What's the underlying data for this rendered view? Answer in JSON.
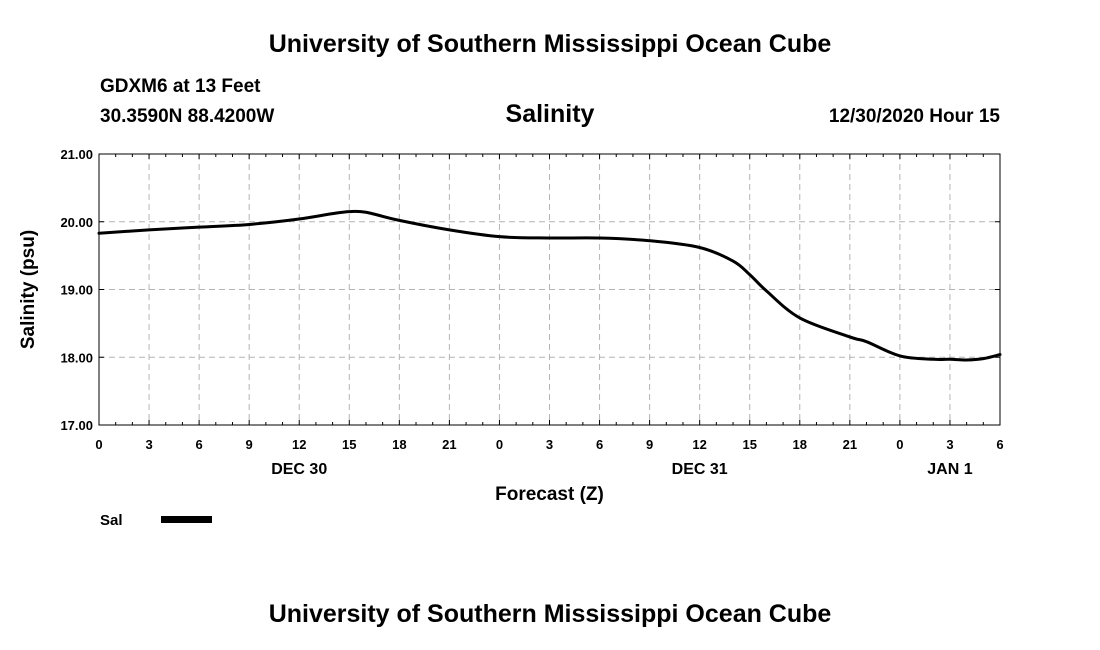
{
  "header": {
    "title": "University of Southern Mississippi Ocean Cube",
    "station": "GDXM6 at 13 Feet",
    "coords": "30.3590N 88.4200W",
    "datetime": "12/30/2020 Hour 15"
  },
  "footer": {
    "title": "University of Southern Mississippi Ocean Cube"
  },
  "colors": {
    "line": "#000000",
    "grid": "#b4b4b4"
  },
  "chart_data": {
    "type": "line",
    "title": "Salinity",
    "xlabel": "Forecast (Z)",
    "ylabel": "Salinity (psu)",
    "xlim": [
      0,
      54
    ],
    "ylim": [
      17,
      21
    ],
    "x_tick_values": [
      0,
      3,
      6,
      9,
      12,
      15,
      18,
      21,
      24,
      27,
      30,
      33,
      36,
      39,
      42,
      45,
      48,
      51,
      54
    ],
    "x_tick_labels": [
      "0",
      "3",
      "6",
      "9",
      "12",
      "15",
      "18",
      "21",
      "0",
      "3",
      "6",
      "9",
      "12",
      "15",
      "18",
      "21",
      "0",
      "3",
      "6"
    ],
    "y_tick_values": [
      17,
      18,
      19,
      20,
      21
    ],
    "y_tick_labels": [
      "17.00",
      "18.00",
      "19.00",
      "20.00",
      "21.00"
    ],
    "date_labels": [
      {
        "x": 12,
        "label": "DEC 30"
      },
      {
        "x": 36,
        "label": "DEC 31"
      },
      {
        "x": 51,
        "label": "JAN 1"
      }
    ],
    "grid": true,
    "legend_position": "bottom-left",
    "series": [
      {
        "name": "Sal",
        "x": [
          0,
          3,
          6,
          9,
          12,
          14,
          15,
          16,
          18,
          21,
          24,
          27,
          30,
          33,
          36,
          38,
          39,
          40,
          42,
          45,
          46,
          48,
          50,
          51,
          52,
          53,
          54
        ],
        "values": [
          19.83,
          19.88,
          19.92,
          19.96,
          20.04,
          20.12,
          20.15,
          20.14,
          20.02,
          19.88,
          19.78,
          19.76,
          19.76,
          19.72,
          19.62,
          19.42,
          19.22,
          18.98,
          18.58,
          18.3,
          18.23,
          18.02,
          17.97,
          17.97,
          17.96,
          17.98,
          18.04
        ]
      }
    ]
  }
}
